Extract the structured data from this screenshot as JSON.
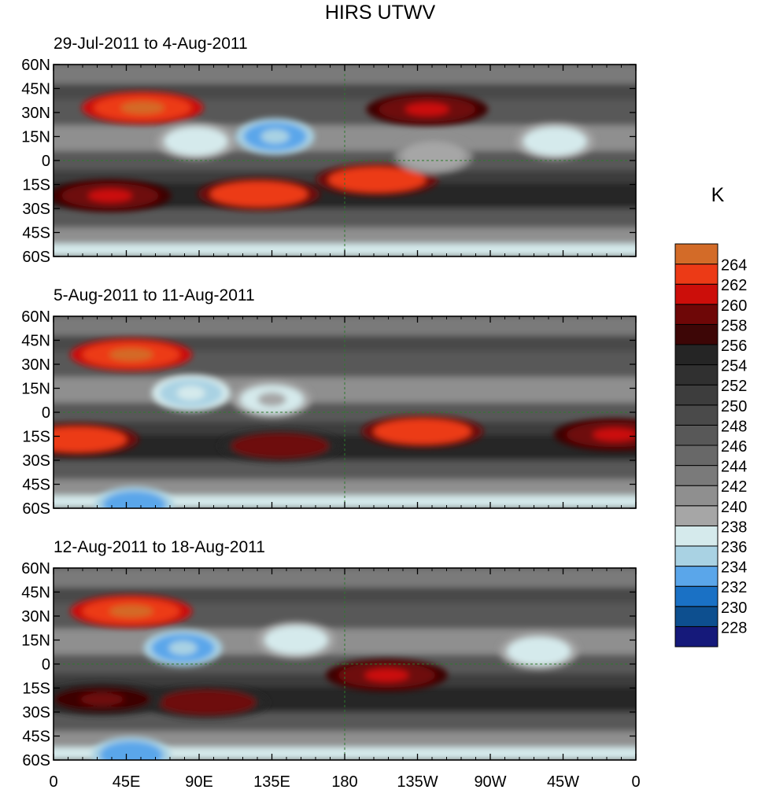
{
  "chart_data": {
    "type": "heatmap",
    "title": "HIRS UTWV",
    "units_label": "K",
    "lat_ticks": [
      "60N",
      "45N",
      "30N",
      "15N",
      "0",
      "15S",
      "30S",
      "45S",
      "60S"
    ],
    "lon_ticks": [
      "0",
      "45E",
      "90E",
      "135E",
      "180",
      "135W",
      "90W",
      "45W",
      "0"
    ],
    "xlim": [
      0,
      360
    ],
    "ylim": [
      -60,
      60
    ],
    "colorbar": {
      "levels": [
        228,
        230,
        232,
        234,
        236,
        238,
        240,
        242,
        244,
        246,
        248,
        250,
        252,
        254,
        256,
        258,
        260,
        262,
        264
      ],
      "colors": [
        "#15197a",
        "#0d4f8f",
        "#1a71c5",
        "#5aa6ea",
        "#a9d2e3",
        "#d5eaec",
        "#a6a6a6",
        "#8f8f8f",
        "#7a7a7a",
        "#686868",
        "#585858",
        "#4a4a4a",
        "#3d3d3d",
        "#303030",
        "#252525",
        "#3d0606",
        "#6e0707",
        "#cc0e0a",
        "#ec3a16",
        "#d36b28"
      ]
    },
    "panels": [
      {
        "period": "29-Jul-2011 to 4-Aug-2011",
        "features": [
          {
            "lon": 55,
            "lat": 33,
            "value": 263
          },
          {
            "lon": 127,
            "lat": -21,
            "value": 262
          },
          {
            "lon": 200,
            "lat": -12,
            "value": 262
          },
          {
            "lon": 231,
            "lat": 32,
            "value": 259
          },
          {
            "lon": 35,
            "lat": -22,
            "value": 259
          },
          {
            "lon": 88,
            "lat": 12,
            "value": 236
          },
          {
            "lon": 137,
            "lat": 15,
            "value": 233
          },
          {
            "lon": 235,
            "lat": 3,
            "value": 238
          },
          {
            "lon": 310,
            "lat": 12,
            "value": 236
          }
        ]
      },
      {
        "period": "5-Aug-2011 to 11-Aug-2011",
        "features": [
          {
            "lon": 48,
            "lat": 36,
            "value": 263
          },
          {
            "lon": 15,
            "lat": -17,
            "value": 262
          },
          {
            "lon": 228,
            "lat": -12,
            "value": 262
          },
          {
            "lon": 347,
            "lat": -14,
            "value": 259
          },
          {
            "lon": 140,
            "lat": -21,
            "value": 258
          },
          {
            "lon": 85,
            "lat": 12,
            "value": 235
          },
          {
            "lon": 135,
            "lat": 8,
            "value": 237
          },
          {
            "lon": 50,
            "lat": -58,
            "value": 232
          }
        ]
      },
      {
        "period": "12-Aug-2011 to 18-Aug-2011",
        "features": [
          {
            "lon": 48,
            "lat": 33,
            "value": 263
          },
          {
            "lon": 206,
            "lat": -7,
            "value": 259
          },
          {
            "lon": 95,
            "lat": -24,
            "value": 258
          },
          {
            "lon": 30,
            "lat": -22,
            "value": 257
          },
          {
            "lon": 80,
            "lat": 10,
            "value": 233
          },
          {
            "lon": 150,
            "lat": 15,
            "value": 236
          },
          {
            "lon": 48,
            "lat": -57,
            "value": 232
          },
          {
            "lon": 300,
            "lat": 8,
            "value": 236
          }
        ]
      }
    ]
  }
}
